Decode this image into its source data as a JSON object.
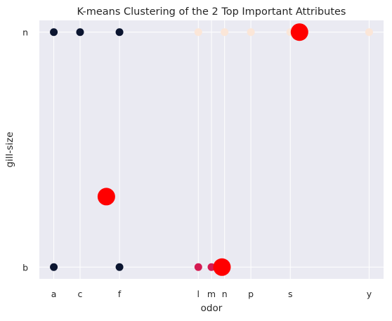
{
  "chart_data": {
    "type": "scatter",
    "title": "K-means Clustering of the 2 Top Important Attributes",
    "xlabel": "odor",
    "ylabel": "gill-size",
    "x_categories": [
      "a",
      "c",
      "f",
      "l",
      "m",
      "n",
      "p",
      "s",
      "y"
    ],
    "x_positions": [
      0,
      1,
      2.5,
      5.5,
      6,
      6.5,
      7.5,
      9,
      12
    ],
    "x_range": [
      -0.55,
      12.55
    ],
    "y_categories": [
      "b",
      "n"
    ],
    "y_range": [
      -0.05,
      1.05
    ],
    "grid": true,
    "points": [
      {
        "x": 0,
        "y": 1,
        "cluster": 0
      },
      {
        "x": 1,
        "y": 1,
        "cluster": 0
      },
      {
        "x": 2.5,
        "y": 1,
        "cluster": 0
      },
      {
        "x": 0,
        "y": 0,
        "cluster": 0
      },
      {
        "x": 2.5,
        "y": 0,
        "cluster": 0
      },
      {
        "x": 5.5,
        "y": 0,
        "cluster": 1
      },
      {
        "x": 6,
        "y": 0,
        "cluster": 1
      },
      {
        "x": 5.5,
        "y": 1,
        "cluster": 2
      },
      {
        "x": 6.5,
        "y": 1,
        "cluster": 2
      },
      {
        "x": 7.5,
        "y": 1,
        "cluster": 2
      },
      {
        "x": 9,
        "y": 1,
        "cluster": 2
      },
      {
        "x": 12,
        "y": 1,
        "cluster": 2
      }
    ],
    "centroids": [
      {
        "x": 2.0,
        "y": 0.3
      },
      {
        "x": 6.4,
        "y": 0.0
      },
      {
        "x": 9.35,
        "y": 1.0
      }
    ],
    "cluster_colors": [
      "#0b1530",
      "#d41a52",
      "#fbe6d8"
    ],
    "centroid_color": "#ff0000",
    "plot_background": "#eaeaf2",
    "grid_color": "#ffffff"
  }
}
